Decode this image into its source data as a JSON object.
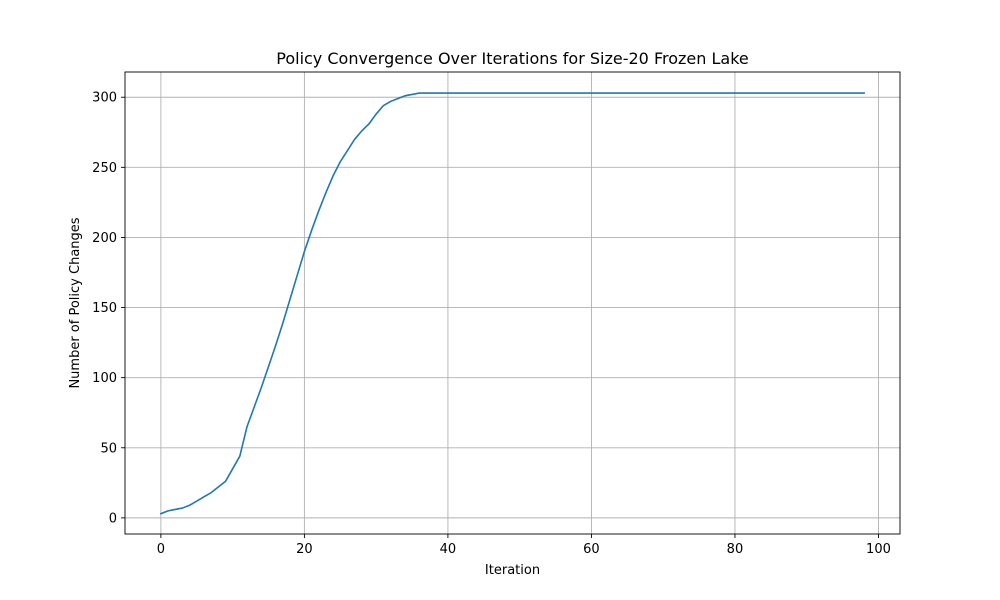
{
  "chart_data": {
    "type": "line",
    "title": "Policy Convergence Over Iterations for Size-20 Frozen Lake",
    "xlabel": "Iteration",
    "ylabel": "Number of Policy Changes",
    "xlim": [
      -5,
      103
    ],
    "ylim": [
      -11.5,
      318
    ],
    "xticks": [
      0,
      20,
      40,
      60,
      80,
      100
    ],
    "yticks": [
      0,
      50,
      100,
      150,
      200,
      250,
      300
    ],
    "xtick_labels": [
      "0",
      "20",
      "40",
      "60",
      "80",
      "100"
    ],
    "ytick_labels": [
      "0",
      "50",
      "100",
      "150",
      "200",
      "250",
      "300"
    ],
    "grid": true,
    "series": [
      {
        "color": "#1f77b4",
        "points": [
          [
            0,
            3
          ],
          [
            1,
            5
          ],
          [
            2,
            6
          ],
          [
            3,
            7
          ],
          [
            4,
            9
          ],
          [
            5,
            12
          ],
          [
            6,
            15
          ],
          [
            7,
            18
          ],
          [
            8,
            22
          ],
          [
            9,
            26
          ],
          [
            10,
            35
          ],
          [
            11,
            44
          ],
          [
            12,
            65
          ],
          [
            13,
            79
          ],
          [
            14,
            93
          ],
          [
            15,
            108
          ],
          [
            16,
            123
          ],
          [
            17,
            139
          ],
          [
            18,
            156
          ],
          [
            19,
            173
          ],
          [
            20,
            190
          ],
          [
            21,
            205
          ],
          [
            22,
            219
          ],
          [
            23,
            232
          ],
          [
            24,
            244
          ],
          [
            25,
            254
          ],
          [
            26,
            262
          ],
          [
            27,
            270
          ],
          [
            28,
            276
          ],
          [
            29,
            281
          ],
          [
            30,
            288
          ],
          [
            31,
            294
          ],
          [
            32,
            297
          ],
          [
            33,
            299
          ],
          [
            34,
            301
          ],
          [
            35,
            302
          ],
          [
            36,
            303
          ],
          [
            38,
            303
          ],
          [
            40,
            303
          ],
          [
            50,
            303
          ],
          [
            60,
            303
          ],
          [
            70,
            303
          ],
          [
            80,
            303
          ],
          [
            90,
            303
          ],
          [
            98,
            303
          ]
        ]
      }
    ]
  }
}
